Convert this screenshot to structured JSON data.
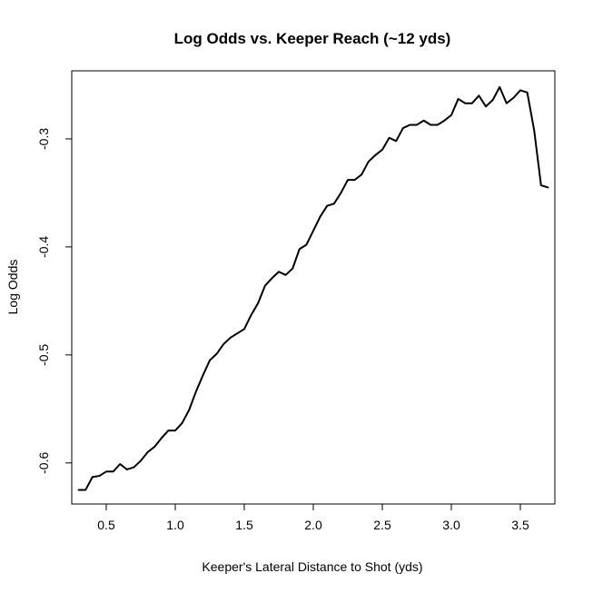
{
  "chart_data": {
    "type": "line",
    "title": "Log Odds vs. Keeper Reach (~12 yds)",
    "xlabel": "Keeper's Lateral Distance to Shot (yds)",
    "ylabel": "Log Odds",
    "xlim": [
      0.25,
      3.75
    ],
    "ylim": [
      -0.638,
      -0.237
    ],
    "x_ticks": [
      {
        "value": 0.5,
        "label": "0.5"
      },
      {
        "value": 1.0,
        "label": "1.0"
      },
      {
        "value": 1.5,
        "label": "1.5"
      },
      {
        "value": 2.0,
        "label": "2.0"
      },
      {
        "value": 2.5,
        "label": "2.5"
      },
      {
        "value": 3.0,
        "label": "3.0"
      },
      {
        "value": 3.5,
        "label": "3.5"
      }
    ],
    "y_ticks": [
      {
        "value": -0.6,
        "label": "-0.6"
      },
      {
        "value": -0.5,
        "label": "-0.5"
      },
      {
        "value": -0.4,
        "label": "-0.4"
      },
      {
        "value": -0.3,
        "label": "-0.3"
      }
    ],
    "grid": false,
    "series": [
      {
        "color": "#000000",
        "x": [
          0.3,
          0.35,
          0.4,
          0.45,
          0.5,
          0.55,
          0.6,
          0.65,
          0.7,
          0.75,
          0.8,
          0.85,
          0.9,
          0.95,
          1.0,
          1.05,
          1.1,
          1.15,
          1.2,
          1.25,
          1.3,
          1.35,
          1.4,
          1.45,
          1.5,
          1.55,
          1.6,
          1.65,
          1.7,
          1.75,
          1.8,
          1.85,
          1.9,
          1.95,
          2.0,
          2.05,
          2.1,
          2.15,
          2.2,
          2.25,
          2.3,
          2.35,
          2.4,
          2.45,
          2.5,
          2.55,
          2.6,
          2.65,
          2.7,
          2.75,
          2.8,
          2.85,
          2.9,
          2.95,
          3.0,
          3.05,
          3.1,
          3.15,
          3.2,
          3.25,
          3.3,
          3.35,
          3.4,
          3.45,
          3.5,
          3.55,
          3.6,
          3.65,
          3.7
        ],
        "y": [
          -0.625,
          -0.625,
          -0.613,
          -0.612,
          -0.608,
          -0.608,
          -0.601,
          -0.606,
          -0.604,
          -0.598,
          -0.59,
          -0.585,
          -0.577,
          -0.57,
          -0.57,
          -0.563,
          -0.551,
          -0.534,
          -0.519,
          -0.505,
          -0.499,
          -0.49,
          -0.484,
          -0.48,
          -0.476,
          -0.463,
          -0.452,
          -0.436,
          -0.429,
          -0.423,
          -0.426,
          -0.42,
          -0.402,
          -0.398,
          -0.385,
          -0.372,
          -0.362,
          -0.36,
          -0.35,
          -0.338,
          -0.338,
          -0.333,
          -0.321,
          -0.315,
          -0.31,
          -0.299,
          -0.302,
          -0.29,
          -0.287,
          -0.287,
          -0.283,
          -0.287,
          -0.287,
          -0.283,
          -0.278,
          -0.263,
          -0.267,
          -0.267,
          -0.26,
          -0.27,
          -0.264,
          -0.252,
          -0.267,
          -0.262,
          -0.255,
          -0.257,
          -0.292,
          -0.343,
          -0.345
        ]
      }
    ]
  }
}
